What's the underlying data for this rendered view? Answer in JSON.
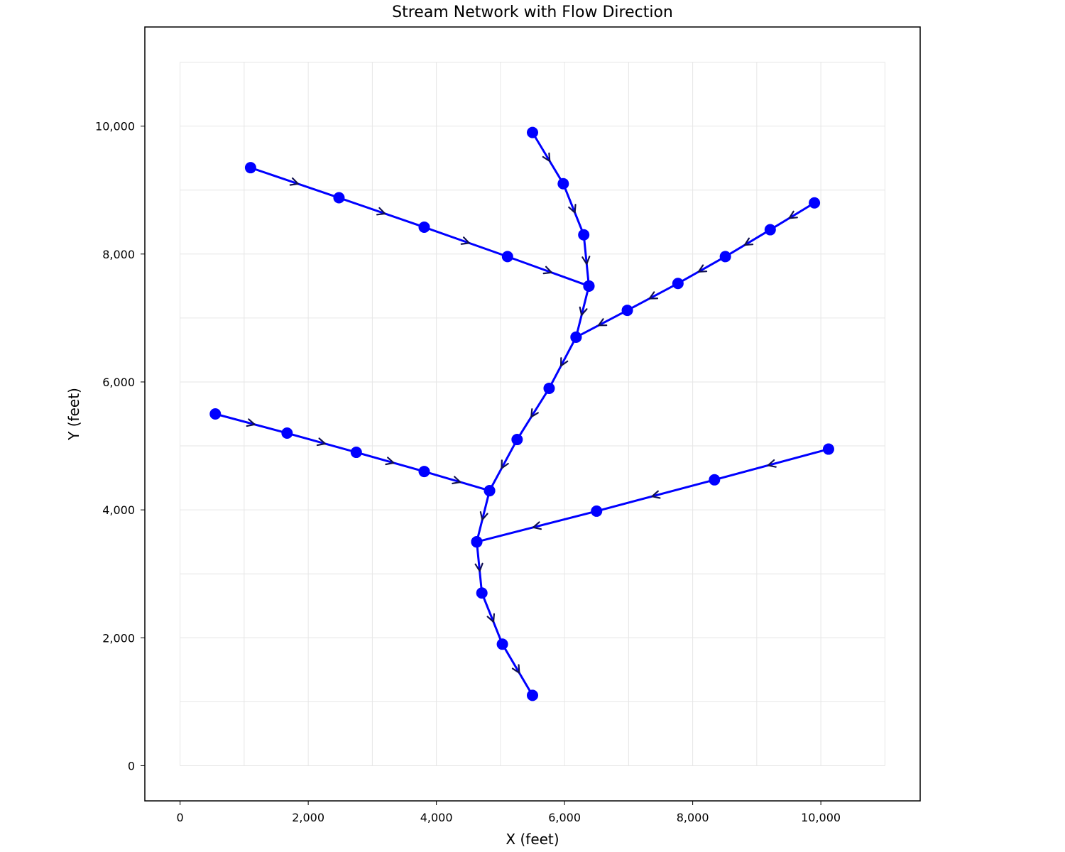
{
  "chart_data": {
    "type": "line",
    "title": "Stream Network with Flow Direction",
    "xlabel": "X (feet)",
    "ylabel": "Y (feet)",
    "xlim": [
      -550,
      11550
    ],
    "ylim": [
      -550,
      11550
    ],
    "xticks": [
      {
        "value": 0,
        "label": "0"
      },
      {
        "value": 2000,
        "label": "2,000"
      },
      {
        "value": 4000,
        "label": "4,000"
      },
      {
        "value": 6000,
        "label": "6,000"
      },
      {
        "value": 8000,
        "label": "8,000"
      },
      {
        "value": 10000,
        "label": "10,000"
      }
    ],
    "yticks": [
      {
        "value": 0,
        "label": "0"
      },
      {
        "value": 2000,
        "label": "2,000"
      },
      {
        "value": 4000,
        "label": "4,000"
      },
      {
        "value": 6000,
        "label": "6,000"
      },
      {
        "value": 8000,
        "label": "8,000"
      },
      {
        "value": 10000,
        "label": "10,000"
      }
    ],
    "grid": {
      "on": true,
      "x_range": [
        0,
        11000
      ],
      "y_range": [
        0,
        11000
      ],
      "step": 1000
    },
    "colors": {
      "stream": "#0000ff",
      "arrow": "#101050",
      "grid": "#e6e6e6"
    },
    "streams": [
      {
        "points": [
          [
            5500,
            9900
          ],
          [
            5980,
            9100
          ],
          [
            6300,
            8300
          ],
          [
            6380,
            7500
          ]
        ]
      },
      {
        "points": [
          [
            1100,
            9350
          ],
          [
            2480,
            8880
          ],
          [
            3810,
            8420
          ],
          [
            5110,
            7960
          ],
          [
            6380,
            7500
          ]
        ]
      },
      {
        "points": [
          [
            9900,
            8800
          ],
          [
            9210,
            8380
          ],
          [
            8510,
            7960
          ],
          [
            7770,
            7540
          ],
          [
            6980,
            7120
          ],
          [
            6180,
            6700
          ]
        ]
      },
      {
        "points": [
          [
            6380,
            7500
          ],
          [
            6180,
            6700
          ],
          [
            5760,
            5900
          ],
          [
            5260,
            5100
          ],
          [
            4830,
            4300
          ],
          [
            4630,
            3500
          ]
        ]
      },
      {
        "points": [
          [
            550,
            5500
          ],
          [
            1670,
            5200
          ],
          [
            2750,
            4900
          ],
          [
            3810,
            4600
          ],
          [
            4830,
            4300
          ]
        ]
      },
      {
        "points": [
          [
            10120,
            4950
          ],
          [
            8340,
            4470
          ],
          [
            6500,
            3980
          ],
          [
            4630,
            3500
          ]
        ]
      },
      {
        "points": [
          [
            4630,
            3500
          ],
          [
            4710,
            2700
          ],
          [
            5030,
            1900
          ],
          [
            5500,
            1100
          ]
        ]
      }
    ]
  }
}
